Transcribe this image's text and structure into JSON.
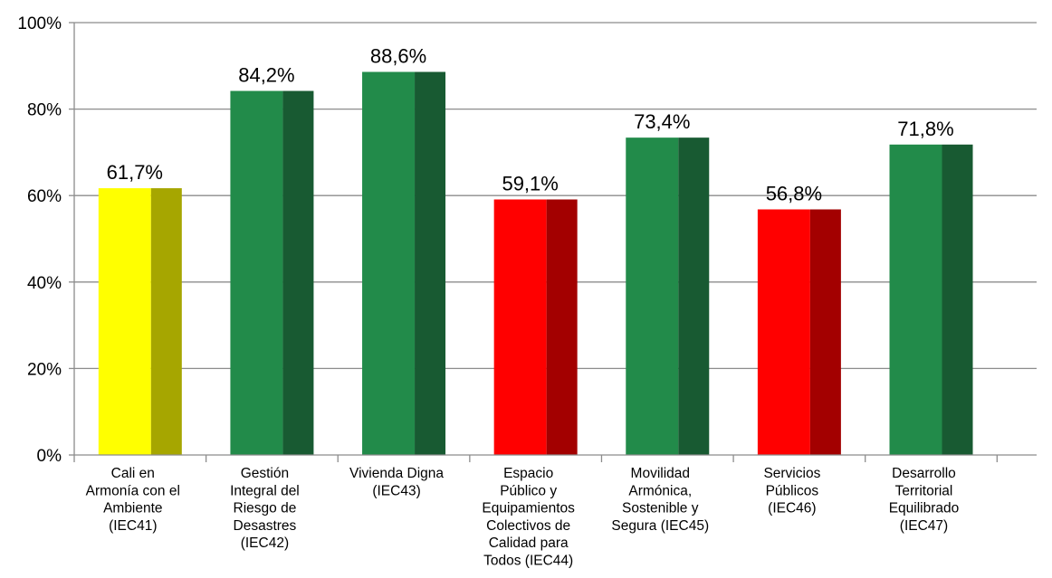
{
  "chart_data": {
    "type": "bar",
    "categories": [
      [
        "Cali en",
        "Armonía con el",
        "Ambiente",
        "(IEC41)"
      ],
      [
        "Gestión",
        "Integral del",
        "Riesgo de",
        "Desastres",
        "(IEC42)"
      ],
      [
        "Vivienda Digna",
        "(IEC43)"
      ],
      [
        "Espacio",
        "Público y",
        "Equipamientos",
        "Colectivos de",
        "Calidad para",
        "Todos (IEC44)"
      ],
      [
        "Movilidad",
        "Armónica,",
        "Sostenible y",
        "Segura (IEC45)"
      ],
      [
        "Servicios",
        "Públicos",
        "(IEC46)"
      ],
      [
        "Desarrollo",
        "Territorial",
        "Equilibrado",
        "(IEC47)"
      ]
    ],
    "values": [
      61.7,
      84.2,
      88.6,
      59.1,
      73.4,
      56.8,
      71.8
    ],
    "value_labels": [
      "61,7%",
      "84,2%",
      "88,6%",
      "59,1%",
      "73,4%",
      "56,8%",
      "71,8%"
    ],
    "ylim": [
      0,
      100
    ],
    "yticks": [
      0,
      20,
      40,
      60,
      80,
      100
    ],
    "ytick_labels": [
      "0%",
      "20%",
      "40%",
      "60%",
      "80%",
      "100%"
    ],
    "grid": true,
    "bar_colors": [
      {
        "front": "#ffff00",
        "side": "#a6a600"
      },
      {
        "front": "#228b4a",
        "side": "#185a32"
      },
      {
        "front": "#228b4a",
        "side": "#185a32"
      },
      {
        "front": "#ff0000",
        "side": "#a30000"
      },
      {
        "front": "#228b4a",
        "side": "#185a32"
      },
      {
        "front": "#ff0000",
        "side": "#a30000"
      },
      {
        "front": "#228b4a",
        "side": "#185a32"
      }
    ]
  }
}
